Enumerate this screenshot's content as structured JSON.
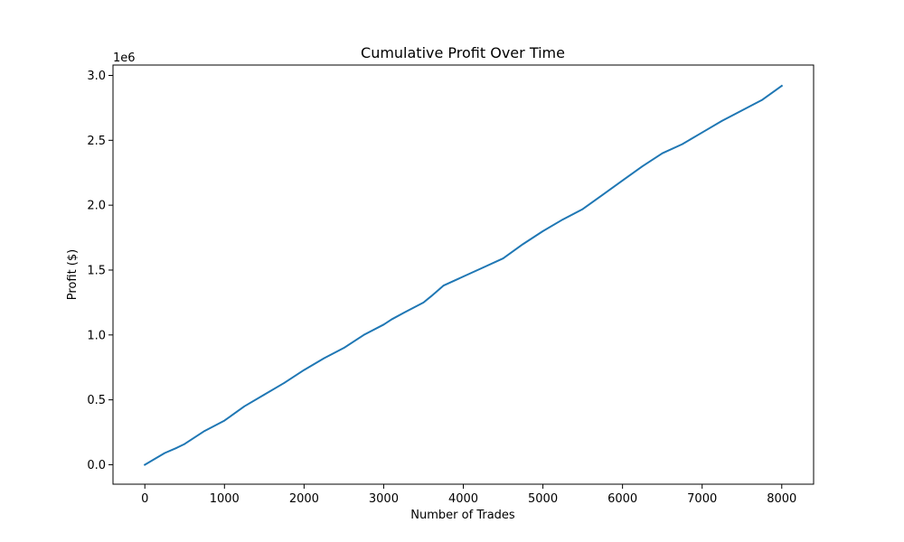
{
  "chart_data": {
    "type": "line",
    "title": "Cumulative Profit Over Time",
    "xlabel": "Number of Trades",
    "ylabel": "Profit ($)",
    "y_offset_label": "1e6",
    "xlim": [
      -400,
      8400
    ],
    "ylim": [
      -150000,
      3080000
    ],
    "x_ticks": [
      0,
      1000,
      2000,
      3000,
      4000,
      5000,
      6000,
      7000,
      8000
    ],
    "x_tick_labels": [
      "0",
      "1000",
      "2000",
      "3000",
      "4000",
      "5000",
      "6000",
      "7000",
      "8000"
    ],
    "y_ticks": [
      0,
      500000,
      1000000,
      1500000,
      2000000,
      2500000,
      3000000
    ],
    "y_tick_labels": [
      "0.0",
      "0.5",
      "1.0",
      "1.5",
      "2.0",
      "2.5",
      "3.0"
    ],
    "grid": false,
    "series": [
      {
        "color": "#1f77b4",
        "x": [
          0,
          250,
          400,
          500,
          750,
          1000,
          1250,
          1500,
          1750,
          1900,
          2000,
          2250,
          2500,
          2750,
          3000,
          3100,
          3250,
          3500,
          3600,
          3750,
          4000,
          4250,
          4500,
          4750,
          5000,
          5250,
          5500,
          5750,
          6000,
          6250,
          6500,
          6750,
          7000,
          7250,
          7500,
          7750,
          8000
        ],
        "y": [
          0,
          90000,
          130000,
          160000,
          260000,
          340000,
          450000,
          540000,
          630000,
          690000,
          730000,
          820000,
          900000,
          1000000,
          1080000,
          1120000,
          1170000,
          1250000,
          1300000,
          1380000,
          1450000,
          1520000,
          1590000,
          1700000,
          1800000,
          1890000,
          1970000,
          2080000,
          2190000,
          2300000,
          2400000,
          2470000,
          2560000,
          2650000,
          2730000,
          2810000,
          2920000
        ]
      }
    ]
  }
}
